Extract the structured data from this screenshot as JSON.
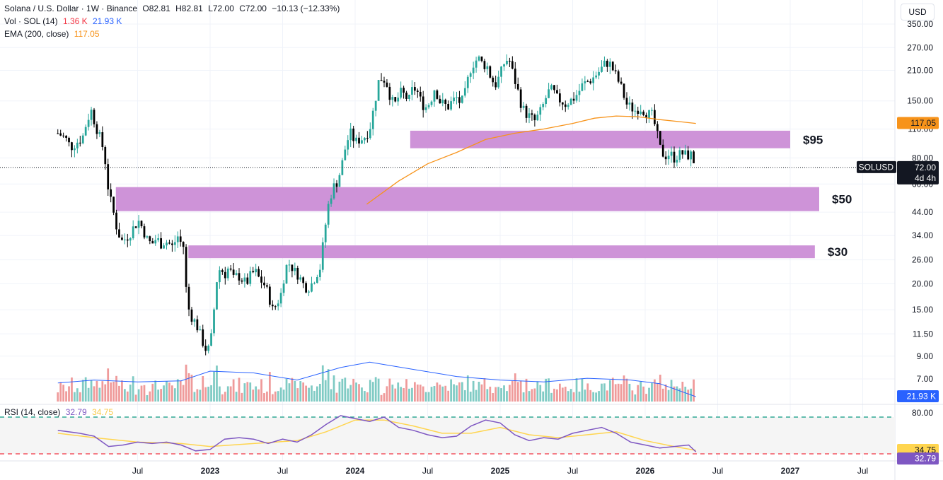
{
  "header": {
    "symbol_title": "Solana / U.S. Dollar · 1W · Binance",
    "open": "O82.81",
    "high": "H82.81",
    "low": "L72.00",
    "close": "C72.00",
    "change": "−10.13 (−12.33%)",
    "vol_label": "Vol · SOL (14)",
    "vol_value_1": "1.36 K",
    "vol_value_2": "21.93 K",
    "ema_label": "EMA (200, close)",
    "ema_value": "117.05",
    "rsi_label": "RSI (14, close)",
    "rsi_value": "32.79",
    "rsi_ma_value": "34.75"
  },
  "currency_button": "USD",
  "price_tags": {
    "ema": "117.05",
    "symbol": "SOLUSD",
    "last": "72.00",
    "countdown": "4d 4h",
    "volume": "21.93 K",
    "rsi_ma": "34.75",
    "rsi": "32.79"
  },
  "colors": {
    "up": "#26a69a",
    "down": "#000000",
    "ema": "#f7931a",
    "zone": "#ce93d8",
    "vol_up": "#80cbc4",
    "vol_down": "#ef9a9a",
    "vol_ma": "#2962ff",
    "rsi": "#7e57c2",
    "rsi_ma": "#ffd54f",
    "rsi_upper": "#089981",
    "rsi_lower": "#f23645"
  },
  "chart_data": {
    "type": "candlestick",
    "scale": "log",
    "price_axis_ticks": [
      "350.00",
      "270.00",
      "210.00",
      "150.00",
      "110.00",
      "80.00",
      "60.00",
      "44.00",
      "34.00",
      "26.00",
      "20.00",
      "15.00",
      "11.50",
      "9.00",
      "7.00"
    ],
    "rsi_axis_ticks": [
      "80.00"
    ],
    "time_axis_labels": [
      {
        "label": "Jul",
        "t": 2022.5,
        "year": false
      },
      {
        "label": "2023",
        "t": 2023.0,
        "year": true
      },
      {
        "label": "Jul",
        "t": 2023.5,
        "year": false
      },
      {
        "label": "2024",
        "t": 2024.0,
        "year": true
      },
      {
        "label": "Jul",
        "t": 2024.5,
        "year": false
      },
      {
        "label": "2025",
        "t": 2025.0,
        "year": true
      },
      {
        "label": "Jul",
        "t": 2025.5,
        "year": false
      },
      {
        "label": "2026",
        "t": 2026.0,
        "year": true
      },
      {
        "label": "Jul",
        "t": 2026.5,
        "year": false
      },
      {
        "label": "2027",
        "t": 2027.0,
        "year": true
      },
      {
        "label": "Jul",
        "t": 2027.5,
        "year": false
      }
    ],
    "zones": [
      {
        "label": "$95",
        "low": 89,
        "high": 108,
        "t_start": 2024.38,
        "t_end": 2027.0
      },
      {
        "label": "$50",
        "low": 44.5,
        "high": 58,
        "t_start": 2022.35,
        "t_end": 2027.2
      },
      {
        "label": "$30",
        "low": 26.5,
        "high": 30.5,
        "t_start": 2022.85,
        "t_end": 2027.17
      }
    ],
    "last_price": 72.0,
    "current_time": 2026.35,
    "close_path": [
      [
        2021.95,
        105
      ],
      [
        2022.0,
        100
      ],
      [
        2022.04,
        90
      ],
      [
        2022.08,
        95
      ],
      [
        2022.12,
        100
      ],
      [
        2022.15,
        120
      ],
      [
        2022.18,
        135
      ],
      [
        2022.21,
        115
      ],
      [
        2022.24,
        100
      ],
      [
        2022.27,
        85
      ],
      [
        2022.3,
        55
      ],
      [
        2022.33,
        45
      ],
      [
        2022.36,
        36
      ],
      [
        2022.39,
        32
      ],
      [
        2022.42,
        33
      ],
      [
        2022.45,
        35
      ],
      [
        2022.48,
        38
      ],
      [
        2022.51,
        40
      ],
      [
        2022.54,
        36
      ],
      [
        2022.57,
        32
      ],
      [
        2022.6,
        31
      ],
      [
        2022.63,
        33
      ],
      [
        2022.66,
        31
      ],
      [
        2022.69,
        32
      ],
      [
        2022.72,
        31
      ],
      [
        2022.74,
        30
      ],
      [
        2022.76,
        32
      ],
      [
        2022.78,
        34
      ],
      [
        2022.8,
        31
      ],
      [
        2022.82,
        30
      ],
      [
        2022.84,
        16
      ],
      [
        2022.87,
        14
      ],
      [
        2022.9,
        13
      ],
      [
        2022.92,
        12
      ],
      [
        2022.94,
        11
      ],
      [
        2022.96,
        10
      ],
      [
        2022.98,
        9.5
      ],
      [
        2023.0,
        10
      ],
      [
        2023.02,
        13
      ],
      [
        2023.04,
        20
      ],
      [
        2023.07,
        24
      ],
      [
        2023.1,
        22
      ],
      [
        2023.13,
        24
      ],
      [
        2023.16,
        21
      ],
      [
        2023.19,
        22
      ],
      [
        2023.22,
        21
      ],
      [
        2023.25,
        20
      ],
      [
        2023.28,
        22
      ],
      [
        2023.31,
        23
      ],
      [
        2023.34,
        21
      ],
      [
        2023.37,
        20
      ],
      [
        2023.4,
        18
      ],
      [
        2023.43,
        15
      ],
      [
        2023.46,
        16
      ],
      [
        2023.49,
        18
      ],
      [
        2023.52,
        24
      ],
      [
        2023.55,
        25
      ],
      [
        2023.58,
        23
      ],
      [
        2023.61,
        22
      ],
      [
        2023.64,
        20
      ],
      [
        2023.67,
        19
      ],
      [
        2023.7,
        20
      ],
      [
        2023.73,
        22
      ],
      [
        2023.76,
        24
      ],
      [
        2023.79,
        36
      ],
      [
        2023.82,
        50
      ],
      [
        2023.85,
        58
      ],
      [
        2023.88,
        62
      ],
      [
        2023.91,
        75
      ],
      [
        2023.94,
        95
      ],
      [
        2023.97,
        105
      ],
      [
        2024.0,
        95
      ],
      [
        2024.03,
        98
      ],
      [
        2024.06,
        100
      ],
      [
        2024.1,
        110
      ],
      [
        2024.13,
        140
      ],
      [
        2024.16,
        185
      ],
      [
        2024.19,
        195
      ],
      [
        2024.22,
        180
      ],
      [
        2024.25,
        150
      ],
      [
        2024.28,
        145
      ],
      [
        2024.31,
        165
      ],
      [
        2024.34,
        160
      ],
      [
        2024.37,
        150
      ],
      [
        2024.4,
        175
      ],
      [
        2024.43,
        165
      ],
      [
        2024.46,
        145
      ],
      [
        2024.49,
        140
      ],
      [
        2024.52,
        150
      ],
      [
        2024.55,
        175
      ],
      [
        2024.58,
        150
      ],
      [
        2024.61,
        145
      ],
      [
        2024.64,
        140
      ],
      [
        2024.67,
        150
      ],
      [
        2024.7,
        155
      ],
      [
        2024.73,
        145
      ],
      [
        2024.76,
        165
      ],
      [
        2024.79,
        210
      ],
      [
        2024.82,
        230
      ],
      [
        2024.85,
        240
      ],
      [
        2024.88,
        225
      ],
      [
        2024.91,
        220
      ],
      [
        2024.94,
        190
      ],
      [
        2024.97,
        180
      ],
      [
        2025.0,
        200
      ],
      [
        2025.03,
        230
      ],
      [
        2025.06,
        240
      ],
      [
        2025.09,
        200
      ],
      [
        2025.12,
        170
      ],
      [
        2025.15,
        140
      ],
      [
        2025.18,
        130
      ],
      [
        2025.21,
        125
      ],
      [
        2025.24,
        120
      ],
      [
        2025.27,
        130
      ],
      [
        2025.3,
        145
      ],
      [
        2025.33,
        165
      ],
      [
        2025.36,
        170
      ],
      [
        2025.39,
        155
      ],
      [
        2025.42,
        150
      ],
      [
        2025.45,
        145
      ],
      [
        2025.48,
        150
      ],
      [
        2025.51,
        155
      ],
      [
        2025.54,
        165
      ],
      [
        2025.57,
        180
      ],
      [
        2025.6,
        185
      ],
      [
        2025.63,
        190
      ],
      [
        2025.66,
        200
      ],
      [
        2025.69,
        210
      ],
      [
        2025.72,
        225
      ],
      [
        2025.75,
        230
      ],
      [
        2025.78,
        210
      ],
      [
        2025.81,
        190
      ],
      [
        2025.84,
        170
      ],
      [
        2025.87,
        145
      ],
      [
        2025.9,
        140
      ],
      [
        2025.93,
        135
      ],
      [
        2025.96,
        140
      ],
      [
        2025.99,
        135
      ],
      [
        2026.02,
        130
      ],
      [
        2026.05,
        128
      ],
      [
        2026.08,
        105
      ],
      [
        2026.11,
        85
      ],
      [
        2026.14,
        82
      ],
      [
        2026.17,
        84
      ],
      [
        2026.2,
        80
      ],
      [
        2026.23,
        83
      ],
      [
        2026.26,
        84
      ],
      [
        2026.29,
        82
      ],
      [
        2026.32,
        82.81
      ],
      [
        2026.35,
        72.0
      ]
    ],
    "ema_path": [
      [
        2024.08,
        48
      ],
      [
        2024.3,
        62
      ],
      [
        2024.5,
        75
      ],
      [
        2024.7,
        85
      ],
      [
        2024.9,
        98
      ],
      [
        2025.1,
        105
      ],
      [
        2025.3,
        110
      ],
      [
        2025.5,
        117
      ],
      [
        2025.65,
        124
      ],
      [
        2025.8,
        127
      ],
      [
        2025.95,
        126
      ],
      [
        2026.1,
        122
      ],
      [
        2026.25,
        119
      ],
      [
        2026.35,
        117.05
      ]
    ],
    "volume_ma_path": [
      [
        2021.95,
        5.2
      ],
      [
        2022.2,
        6
      ],
      [
        2022.5,
        5.5
      ],
      [
        2022.8,
        5.8
      ],
      [
        2023.0,
        8.5
      ],
      [
        2023.3,
        8
      ],
      [
        2023.6,
        6
      ],
      [
        2023.9,
        9.5
      ],
      [
        2024.1,
        11
      ],
      [
        2024.4,
        9
      ],
      [
        2024.7,
        7
      ],
      [
        2025.0,
        6
      ],
      [
        2025.3,
        5.5
      ],
      [
        2025.6,
        6.5
      ],
      [
        2025.9,
        6
      ],
      [
        2026.1,
        5
      ],
      [
        2026.35,
        1.36
      ]
    ],
    "rsi_path": [
      [
        2021.95,
        62
      ],
      [
        2022.1,
        58
      ],
      [
        2022.2,
        54
      ],
      [
        2022.3,
        40
      ],
      [
        2022.4,
        42
      ],
      [
        2022.5,
        46
      ],
      [
        2022.6,
        44
      ],
      [
        2022.7,
        46
      ],
      [
        2022.8,
        42
      ],
      [
        2022.9,
        34
      ],
      [
        2023.0,
        36
      ],
      [
        2023.1,
        50
      ],
      [
        2023.2,
        52
      ],
      [
        2023.3,
        50
      ],
      [
        2023.4,
        44
      ],
      [
        2023.5,
        50
      ],
      [
        2023.6,
        46
      ],
      [
        2023.7,
        56
      ],
      [
        2023.8,
        70
      ],
      [
        2023.9,
        82
      ],
      [
        2024.0,
        78
      ],
      [
        2024.1,
        74
      ],
      [
        2024.2,
        80
      ],
      [
        2024.3,
        66
      ],
      [
        2024.4,
        62
      ],
      [
        2024.5,
        56
      ],
      [
        2024.6,
        52
      ],
      [
        2024.7,
        54
      ],
      [
        2024.8,
        68
      ],
      [
        2024.9,
        76
      ],
      [
        2025.0,
        72
      ],
      [
        2025.1,
        56
      ],
      [
        2025.2,
        48
      ],
      [
        2025.3,
        52
      ],
      [
        2025.4,
        50
      ],
      [
        2025.5,
        58
      ],
      [
        2025.6,
        62
      ],
      [
        2025.7,
        66
      ],
      [
        2025.8,
        58
      ],
      [
        2025.9,
        46
      ],
      [
        2026.0,
        42
      ],
      [
        2026.1,
        38
      ],
      [
        2026.2,
        40
      ],
      [
        2026.3,
        42
      ],
      [
        2026.35,
        32.79
      ]
    ],
    "rsi_ma_path": [
      [
        2021.95,
        58
      ],
      [
        2022.2,
        52
      ],
      [
        2022.5,
        46
      ],
      [
        2022.8,
        44
      ],
      [
        2023.0,
        40
      ],
      [
        2023.3,
        44
      ],
      [
        2023.6,
        48
      ],
      [
        2023.8,
        60
      ],
      [
        2024.0,
        76
      ],
      [
        2024.2,
        76
      ],
      [
        2024.4,
        68
      ],
      [
        2024.6,
        58
      ],
      [
        2024.8,
        58
      ],
      [
        2025.0,
        66
      ],
      [
        2025.2,
        56
      ],
      [
        2025.4,
        52
      ],
      [
        2025.6,
        56
      ],
      [
        2025.8,
        60
      ],
      [
        2026.0,
        48
      ],
      [
        2026.2,
        40
      ],
      [
        2026.35,
        34.75
      ]
    ],
    "rsi_bands": {
      "upper": 80,
      "lower": 30
    }
  }
}
